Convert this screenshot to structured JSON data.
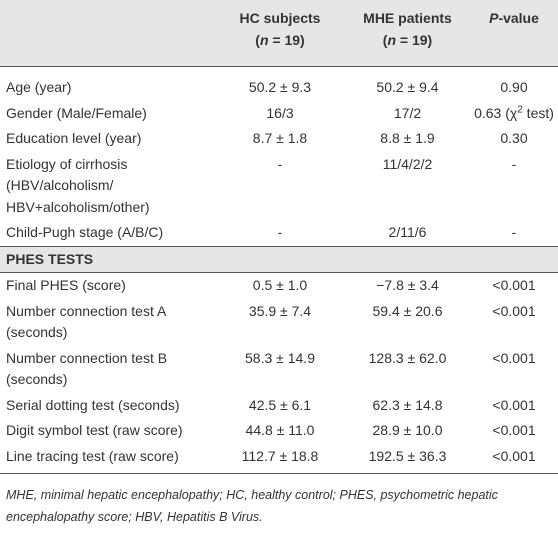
{
  "header": [
    [
      [
        "HC subjects"
      ],
      [
        "(",
        "n",
        " = 19)"
      ]
    ],
    [
      [
        "MHE patients"
      ],
      [
        "(",
        "n",
        " = 19)"
      ]
    ],
    [
      [
        "P",
        "-value"
      ]
    ]
  ],
  "rows": [
    {
      "label": [
        "Age (year)"
      ],
      "cells": [
        "50.2 ± 9.3",
        "50.2 ± 9.4",
        "0.90"
      ]
    },
    {
      "label": [
        "Gender (Male/Female)"
      ],
      "cells": [
        "16/3",
        "17/2",
        [
          "0.63 (χ",
          "2",
          " test)"
        ]
      ]
    },
    {
      "label": [
        "Education level (year)"
      ],
      "cells": [
        "8.7 ± 1.8",
        "8.8 ± 1.9",
        "0.30"
      ]
    },
    {
      "label": [
        "Etiology of cirrhosis",
        "(HBV/alcoholism/",
        "HBV+alcoholism/other)"
      ],
      "cells": [
        "-",
        "11/4/2/2",
        "-"
      ]
    },
    {
      "label": [
        "Child-Pugh stage (A/B/C)"
      ],
      "cells": [
        "-",
        "2/11/6",
        "-"
      ]
    },
    {
      "section": "PHES TESTS"
    },
    {
      "label": [
        "Final PHES (score)"
      ],
      "cells": [
        "0.5 ± 1.0",
        "−7.8 ± 3.4",
        "<0.001"
      ]
    },
    {
      "label": [
        "Number connection test A",
        "(seconds)"
      ],
      "cells": [
        "35.9 ± 7.4",
        "59.4 ± 20.6",
        "<0.001"
      ]
    },
    {
      "label": [
        "Number connection test B",
        "(seconds)"
      ],
      "cells": [
        "58.3 ± 14.9",
        "128.3 ± 62.0",
        "<0.001"
      ]
    },
    {
      "label": [
        "Serial dotting test (seconds)"
      ],
      "cells": [
        "42.5 ± 6.1",
        "62.3 ± 14.8",
        "<0.001"
      ]
    },
    {
      "label": [
        "Digit symbol test (raw score)"
      ],
      "cells": [
        "44.8 ± 11.0",
        "28.9 ± 10.0",
        "<0.001"
      ]
    },
    {
      "label": [
        "Line tracing test (raw score)"
      ],
      "cells": [
        "112.7 ± 18.8",
        "192.5 ± 36.3",
        "<0.001"
      ]
    }
  ],
  "footnote": "MHE, minimal hepatic encephalopathy; HC, healthy control; PHES, psychometric hepatic encephalopathy score; HBV, Hepatitis B Virus."
}
